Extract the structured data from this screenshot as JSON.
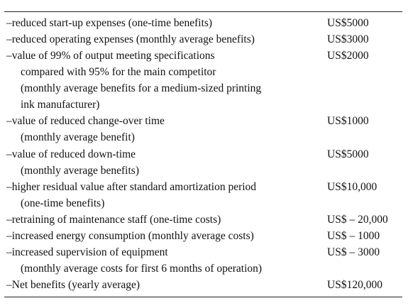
{
  "table": {
    "rows": [
      {
        "lines": [
          "–reduced start-up expenses (one-time benefits)"
        ],
        "value": "US$5000"
      },
      {
        "lines": [
          "–reduced operating expenses (monthly average benefits)"
        ],
        "value": "US$3000"
      },
      {
        "lines": [
          "–value of 99% of output meeting specifications",
          "compared with 95% for the main competitor",
          "(monthly average benefits for a medium-sized printing",
          "ink manufacturer)"
        ],
        "value": "US$2000"
      },
      {
        "lines": [
          "–value of reduced change-over time",
          "(monthly average benefit)"
        ],
        "value": "US$1000"
      },
      {
        "lines": [
          "–value of reduced down-time",
          "(monthly average benefits)"
        ],
        "value": "US$5000"
      },
      {
        "lines": [
          "–higher residual value after standard amortization period",
          "(one-time benefits)"
        ],
        "value": "US$10,000"
      },
      {
        "lines": [
          "–retraining of maintenance staff (one-time costs)"
        ],
        "value": "US$ – 20,000"
      },
      {
        "lines": [
          "–increased energy consumption (monthly average costs)"
        ],
        "value": "US$ – 1000"
      },
      {
        "lines": [
          "–increased supervision of equipment",
          "(monthly average costs for first 6 months of operation)"
        ],
        "value": "US$ – 3000"
      },
      {
        "lines": [
          "–Net benefits (yearly average)"
        ],
        "value": "US$120,000"
      }
    ]
  }
}
